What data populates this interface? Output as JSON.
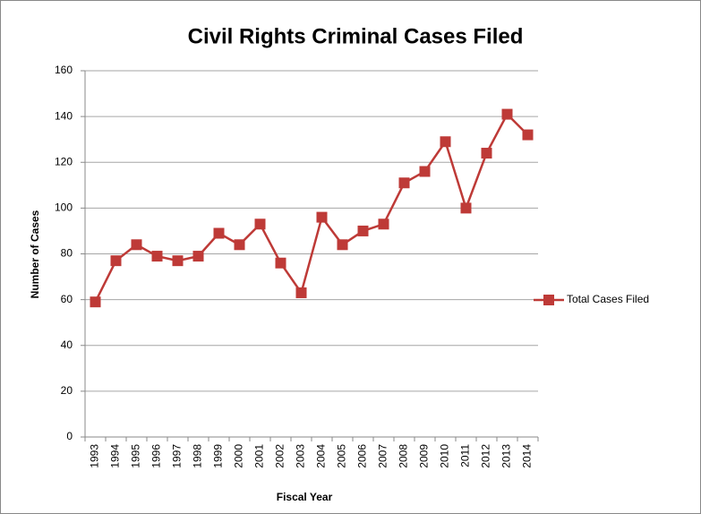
{
  "chart_data": {
    "type": "line",
    "title": "Civil Rights Criminal Cases Filed",
    "x_label": "Fiscal Year",
    "y_label": "Number of Cases",
    "categories": [
      "1993",
      "1994",
      "1995",
      "1996",
      "1997",
      "1998",
      "1999",
      "2000",
      "2001",
      "2002",
      "2003",
      "2004",
      "2005",
      "2006",
      "2007",
      "2008",
      "2009",
      "2010",
      "2011",
      "2012",
      "2013",
      "2014"
    ],
    "series": [
      {
        "name": "Total Cases Filed",
        "color": "#be3a37",
        "values": [
          59,
          77,
          84,
          79,
          77,
          79,
          89,
          84,
          93,
          76,
          63,
          96,
          84,
          90,
          93,
          111,
          116,
          129,
          100,
          124,
          141,
          132
        ]
      }
    ],
    "ylim": [
      0,
      160
    ],
    "yticks": [
      0,
      20,
      40,
      60,
      80,
      100,
      120,
      140,
      160
    ],
    "grid": true,
    "legend": "right"
  }
}
